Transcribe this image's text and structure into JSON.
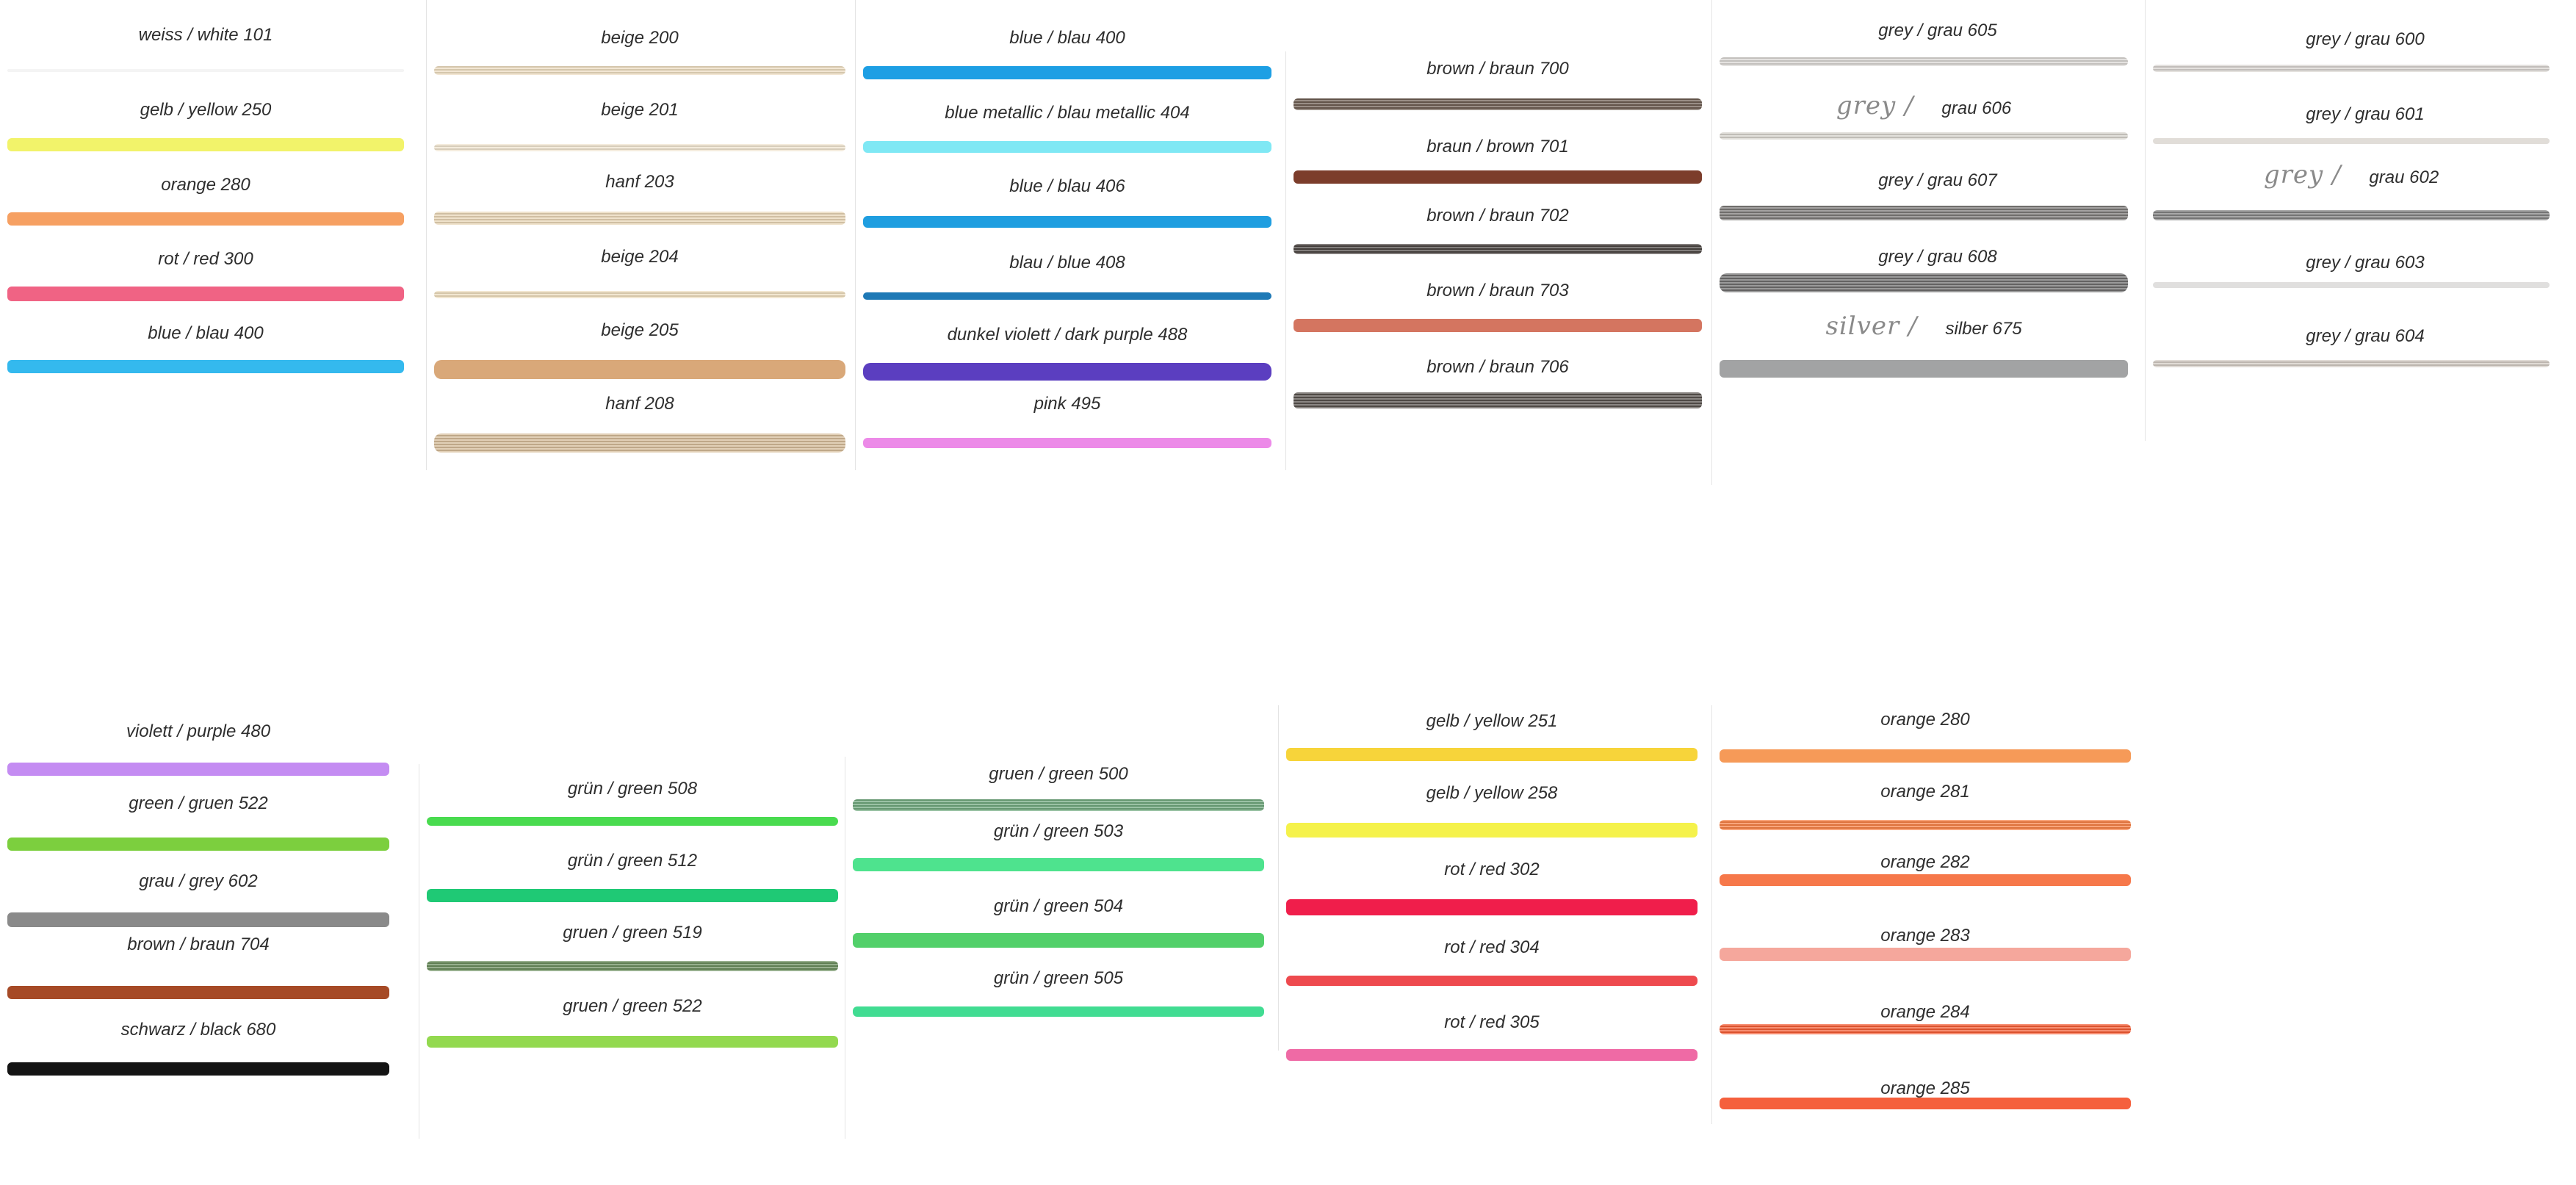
{
  "colors": [
    {
      "swatches": [
        {
          "label": "weiss / white 101",
          "color": "#f4f4f4"
        },
        {
          "label": "gelb / yellow 250",
          "color": "#f2f36a"
        },
        {
          "label": "orange 280",
          "color": "#f6a062"
        },
        {
          "label": "rot / red 300",
          "color": "#f06384"
        },
        {
          "label": "blue / blau 400",
          "color": "#34b9ee"
        }
      ]
    },
    {
      "swatches": [
        {
          "label": "beige 200",
          "color": "#ecdcc0"
        },
        {
          "label": "beige 201",
          "color": "#efe4cf"
        },
        {
          "label": "hanf 203",
          "color": "#e8d5b5"
        },
        {
          "label": "beige 204",
          "color": "#eddcbc"
        },
        {
          "label": "beige 205",
          "color": "#d9a879"
        },
        {
          "label": "hanf 208",
          "color": "#d5bb98"
        }
      ]
    },
    {
      "swatches": [
        {
          "label": "blue / blau 400",
          "color": "#1d9fe4"
        },
        {
          "label": "blue metallic / blau metallic 404",
          "color": "#7fe8f4"
        },
        {
          "label": "blue / blau  406",
          "color": "#1f9ee0"
        },
        {
          "label": "blau / blue 408",
          "color": "#1e79b6"
        },
        {
          "label": "dunkel violett / dark purple 488",
          "color": "#5b3ec0"
        },
        {
          "label": "pink 495",
          "color": "#ec8ae8"
        }
      ]
    },
    {
      "swatches": [
        {
          "label": "brown / braun 700",
          "color": "#6d5d52"
        },
        {
          "label": "braun / brown  701",
          "color": "#7c3d2b"
        },
        {
          "label": "brown / braun 702",
          "color": "#4b4542"
        },
        {
          "label": "brown / braun 703",
          "color": "#d47560"
        },
        {
          "label": "brown / braun 706",
          "color": "#58524e"
        }
      ]
    },
    {
      "swatches": [
        {
          "label": "grey  / grau 605",
          "color": "#d9d6d2",
          "handwritten": ""
        },
        {
          "label": "grau 606",
          "color": "#d6d2cc",
          "handwritten": "grey /"
        },
        {
          "label": "grey  / grau 607",
          "color": "#7d7a78",
          "handwritten": ""
        },
        {
          "label": "grey  / grau 608",
          "color": "#6f6e6e",
          "handwritten": ""
        },
        {
          "label": "silber  675",
          "color": "#a2a3a4",
          "handwritten": "silver /"
        }
      ]
    },
    {
      "swatches": [
        {
          "label": "grey  / grau 600",
          "color": "#d8d4d0",
          "handwritten": ""
        },
        {
          "label": "grey  / grau 601",
          "color": "#e1ddd8",
          "handwritten": ""
        },
        {
          "label": "grau  602",
          "color": "#828282",
          "handwritten": "grey /"
        },
        {
          "label": "grey  / grau 603",
          "color": "#e0dfde",
          "handwritten": ""
        },
        {
          "label": "grey  / grau 604",
          "color": "#d2cbc3",
          "handwritten": ""
        }
      ]
    },
    {
      "swatches": [
        {
          "label": "violett / purple  480",
          "color": "#c48cf2"
        },
        {
          "label": "green / gruen 522",
          "color": "#7ccf3e"
        },
        {
          "label": "grau / grey  602",
          "color": "#8a8a8a"
        },
        {
          "label": "brown / braun 704",
          "color": "#a64a26"
        },
        {
          "label": "schwarz / black  680",
          "color": "#141414"
        }
      ]
    },
    {
      "swatches": [
        {
          "label": "grün / green 508",
          "color": "#49db4f"
        },
        {
          "label": "grün / green 512",
          "color": "#1fc975"
        },
        {
          "label": "gruen / green 519",
          "color": "#6a8c5c"
        },
        {
          "label": "gruen / green 522",
          "color": "#93d94f"
        }
      ]
    },
    {
      "swatches": [
        {
          "label": "gruen / green  500",
          "color": "#6fa77c"
        },
        {
          "label": "grün / green 503",
          "color": "#4ee38e"
        },
        {
          "label": "grün / green 504",
          "color": "#52d06a"
        },
        {
          "label": "grün / green 505",
          "color": "#41dc92"
        }
      ]
    },
    {
      "swatches": [
        {
          "label": "gelb / yellow 251",
          "color": "#f7d43a"
        },
        {
          "label": "gelb / yellow 258",
          "color": "#f5f24b"
        },
        {
          "label": "rot / red 302",
          "color": "#f01e4b"
        },
        {
          "label": "rot / red 304",
          "color": "#ee4a4e"
        },
        {
          "label": "rot / red 305",
          "color": "#ef6aa5"
        }
      ]
    },
    {
      "swatches": [
        {
          "label": "orange 280",
          "color": "#f69a58"
        },
        {
          "label": "orange  281",
          "color": "#f67f43"
        },
        {
          "label": "orange 282",
          "color": "#f6784a"
        },
        {
          "label": "orange 283",
          "color": "#f5a79c"
        },
        {
          "label": "orange 284",
          "color": "#f45c34"
        },
        {
          "label": "orange 285",
          "color": "#f5603d"
        }
      ]
    }
  ]
}
